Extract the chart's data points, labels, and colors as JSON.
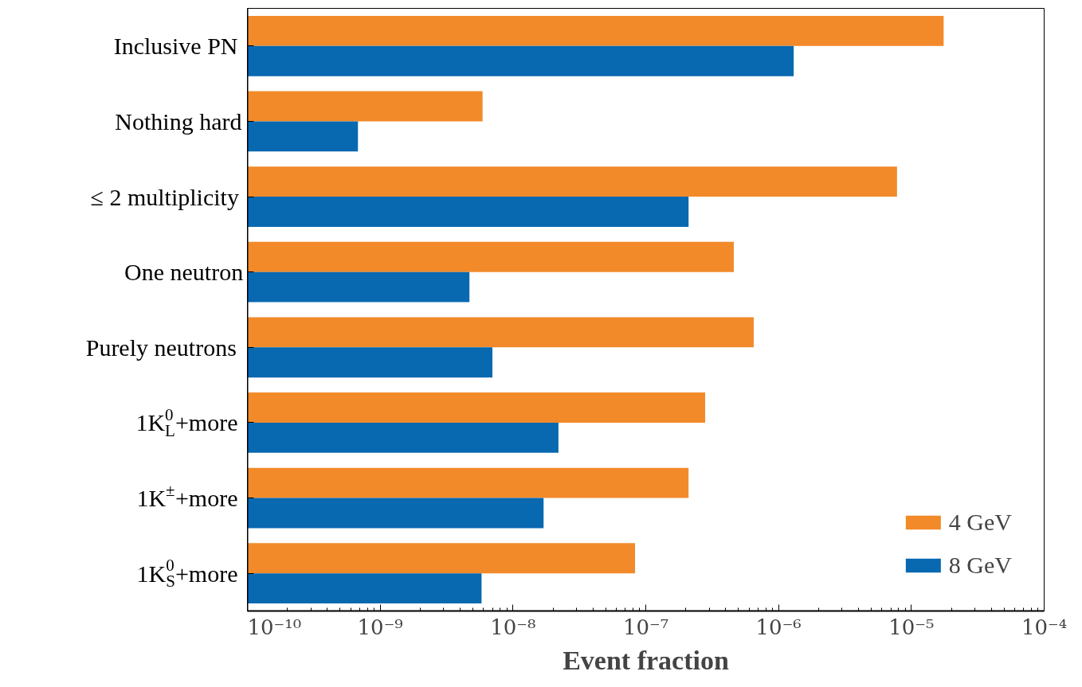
{
  "chart_data": {
    "type": "bar",
    "orientation": "horizontal",
    "log": "x",
    "xlabel": "Event fraction",
    "categories": [
      "Inclusive PN",
      "Nothing hard",
      "≤ 2 multiplicity",
      "One neutron",
      "Purely neutrons",
      "1K$^{0}$$_{L}$+more",
      "1K$^{±}$+more",
      "1K$^{0}$$_{S}$+more"
    ],
    "series": [
      {
        "name": "4 GeV",
        "color": "#f28a2a",
        "values": [
          1.75e-05,
          5.9e-09,
          7.8e-06,
          4.6e-07,
          6.5e-07,
          2.8e-07,
          2.1e-07,
          8.3e-08
        ]
      },
      {
        "name": "8 GeV",
        "color": "#0868b0",
        "values": [
          1.3e-06,
          6.8e-10,
          2.1e-07,
          4.7e-09,
          7e-09,
          2.2e-08,
          1.7e-08,
          5.8e-09
        ]
      }
    ],
    "xlim": [
      1e-10,
      0.0001
    ],
    "xticks": [
      {
        "value": 1e-10,
        "label": "10⁻¹⁰"
      },
      {
        "value": 1e-09,
        "label": "10⁻⁹"
      },
      {
        "value": 1e-08,
        "label": "10⁻⁸"
      },
      {
        "value": 1e-07,
        "label": "10⁻⁷"
      },
      {
        "value": 1e-06,
        "label": "10⁻⁶"
      },
      {
        "value": 1e-05,
        "label": "10⁻⁵"
      },
      {
        "value": 0.0001,
        "label": "10⁻⁴"
      }
    ],
    "grid": false,
    "legend": "bottom right"
  }
}
